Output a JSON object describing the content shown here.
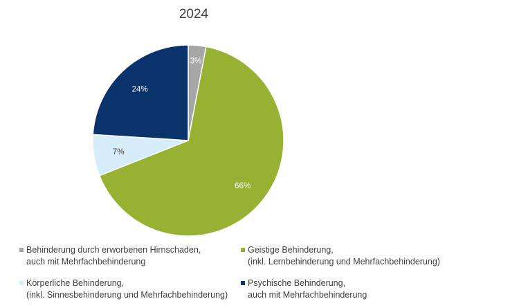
{
  "chart_data": {
    "type": "pie",
    "title": "2024",
    "start_angle_deg": 0,
    "direction": "clockwise",
    "slices": [
      {
        "label": "Behinderung durch erworbenen Hirnschaden,\nauch mit Mehrfachbehinderung",
        "value": 3,
        "data_label": "3%",
        "color": "#a6a6a6",
        "label_color": "#ffffff"
      },
      {
        "label": "Geistige Behinderung,\n(inkl. Lernbehinderung und Mehrfachbehinderung)",
        "value": 66,
        "data_label": "66%",
        "color": "#97b233",
        "label_color": "#ffffff"
      },
      {
        "label": "Körperliche Behinderung,\n(inkl. Sinnesbehinderung und Mehrfachbehinderung)",
        "value": 7,
        "data_label": "7%",
        "color": "#d6ecfa",
        "label_color": "#404040"
      },
      {
        "label": "Psychische Behinderung,\nauch mit Mehrfachbehinderung",
        "value": 24,
        "data_label": "24%",
        "color": "#0a336b",
        "label_color": "#ffffff"
      }
    ],
    "legend_position": "bottom"
  }
}
